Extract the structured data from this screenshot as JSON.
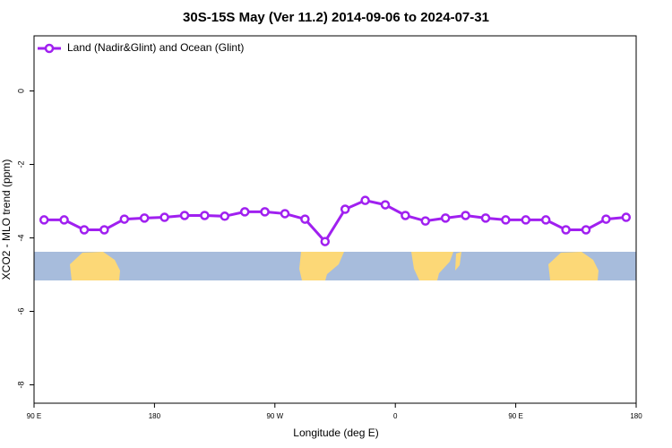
{
  "chart_data": {
    "type": "line",
    "title": "30S-15S May (Ver 11.2)   2014-09-06 to 2024-07-31",
    "x_label": "Longitude (deg E)",
    "y_label": "XCO2 - MLO trend (ppm)",
    "xlim": [
      90,
      540
    ],
    "xticks": [
      {
        "value": 90,
        "label": "90 E"
      },
      {
        "value": 180,
        "label": "180"
      },
      {
        "value": 270,
        "label": "90 W"
      },
      {
        "value": 360,
        "label": "0"
      },
      {
        "value": 450,
        "label": "90 E"
      },
      {
        "value": 540,
        "label": "180"
      }
    ],
    "ylim": [
      -8.5,
      1.5
    ],
    "yticks": [
      0,
      -2,
      -4,
      -6,
      -8
    ],
    "legend": "top-left",
    "x": [
      97.5,
      112.5,
      127.5,
      142.5,
      157.5,
      172.5,
      187.5,
      202.5,
      217.5,
      232.5,
      247.5,
      262.5,
      277.5,
      292.5,
      307.5,
      322.5,
      337.5,
      352.5,
      367.5,
      382.5,
      397.5,
      412.5,
      427.5,
      442.5,
      457.5,
      472.5,
      487.5,
      502.5,
      517.5,
      532.5
    ],
    "series": [
      {
        "name": "Land (Nadir&Glint) and Ocean (Glint)",
        "color": "#a020f0",
        "values": [
          -3.51,
          -3.51,
          -3.78,
          -3.78,
          -3.49,
          -3.46,
          -3.44,
          -3.39,
          -3.39,
          -3.41,
          -3.29,
          -3.29,
          -3.34,
          -3.49,
          -4.1,
          -3.22,
          -2.98,
          -3.1,
          -3.39,
          -3.54,
          -3.46,
          -3.39,
          -3.46,
          -3.51,
          -3.51,
          -3.51,
          -3.78,
          -3.78,
          -3.49,
          -3.44
        ]
      }
    ]
  }
}
